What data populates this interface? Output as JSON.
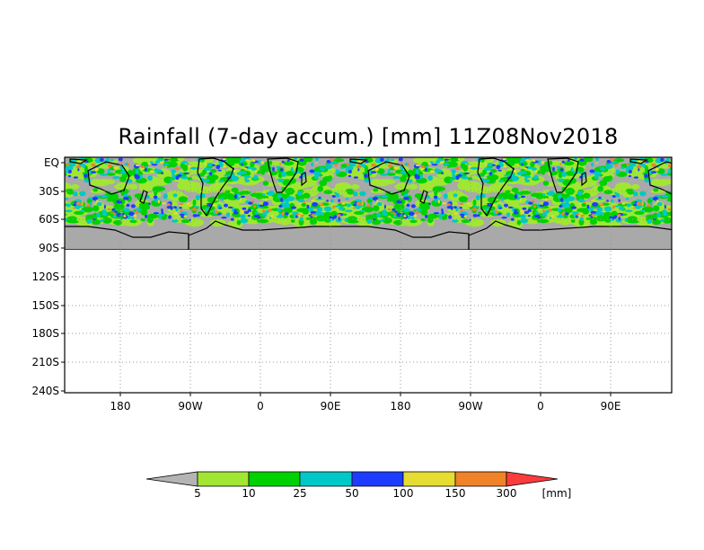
{
  "title": "Rainfall (7-day accum.) [mm] 11Z08Nov2018",
  "y_axis_labels": [
    "EQ",
    "30S",
    "60S",
    "90S",
    "120S",
    "150S",
    "180S",
    "210S",
    "240S"
  ],
  "x_axis_labels": [
    "180",
    "90W",
    "0",
    "90E",
    "180",
    "90W",
    "0",
    "90E"
  ],
  "colorbar": {
    "labels": [
      "5",
      "10",
      "25",
      "50",
      "100",
      "150",
      "300"
    ],
    "unit": "[mm]",
    "colors": [
      "#b4b4b4",
      "#a0e632",
      "#00d200",
      "#00c8c8",
      "#1e3cff",
      "#e6dc32",
      "#f08228",
      "#fa3c3c"
    ]
  },
  "colors": {
    "no_rain": "#a9a9a9",
    "coast": "#000000",
    "grid": "#9a9a9a"
  }
}
